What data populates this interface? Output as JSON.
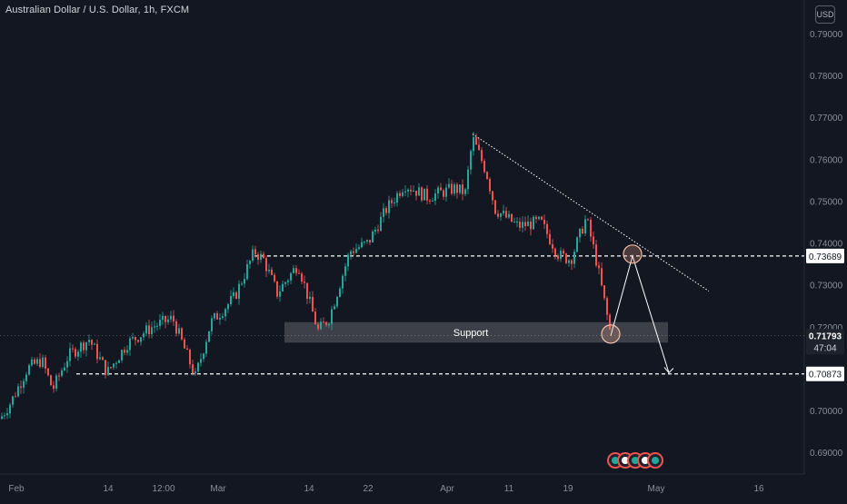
{
  "header": {
    "symbol": "Australian Dollar / U.S. Dollar, 1h, FXCM",
    "currency": "USD"
  },
  "colors": {
    "background": "#131722",
    "up": "#26a69a",
    "down": "#ef5350",
    "grid_text": "#b2b5be",
    "annotation": "#ffffff"
  },
  "chart_data": {
    "type": "candlestick",
    "symbol": "AUDUSD",
    "timeframe": "1h",
    "ylim": [
      0.685,
      0.795
    ],
    "y_ticks": [
      {
        "value": 0.79,
        "label": "0.79000"
      },
      {
        "value": 0.78,
        "label": "0.78000"
      },
      {
        "value": 0.77,
        "label": "0.77000"
      },
      {
        "value": 0.76,
        "label": "0.76000"
      },
      {
        "value": 0.75,
        "label": "0.75000"
      },
      {
        "value": 0.74,
        "label": "0.74000"
      },
      {
        "value": 0.73,
        "label": "0.73000"
      },
      {
        "value": 0.72,
        "label": "0.72000"
      },
      {
        "value": 0.7,
        "label": "0.70000"
      },
      {
        "value": 0.69,
        "label": "0.69000"
      }
    ],
    "x_ticks": [
      "Feb",
      "14",
      "12:00",
      "Mar",
      "14",
      "22",
      "Apr",
      "11",
      "19",
      "May",
      "16"
    ],
    "price_path": [
      [
        0,
        0.698
      ],
      [
        12,
        0.702
      ],
      [
        30,
        0.71
      ],
      [
        46,
        0.712
      ],
      [
        58,
        0.705
      ],
      [
        75,
        0.713
      ],
      [
        98,
        0.717
      ],
      [
        118,
        0.709
      ],
      [
        140,
        0.716
      ],
      [
        168,
        0.72
      ],
      [
        190,
        0.722
      ],
      [
        215,
        0.708
      ],
      [
        232,
        0.721
      ],
      [
        258,
        0.727
      ],
      [
        280,
        0.738
      ],
      [
        290,
        0.736
      ],
      [
        305,
        0.728
      ],
      [
        328,
        0.735
      ],
      [
        350,
        0.719
      ],
      [
        362,
        0.722
      ],
      [
        385,
        0.738
      ],
      [
        405,
        0.74
      ],
      [
        425,
        0.748
      ],
      [
        445,
        0.754
      ],
      [
        470,
        0.751
      ],
      [
        500,
        0.753
      ],
      [
        512,
        0.752
      ],
      [
        520,
        0.765
      ],
      [
        535,
        0.757
      ],
      [
        545,
        0.748
      ],
      [
        570,
        0.744
      ],
      [
        595,
        0.745
      ],
      [
        615,
        0.737
      ],
      [
        628,
        0.736
      ],
      [
        645,
        0.746
      ],
      [
        655,
        0.737
      ],
      [
        665,
        0.726
      ],
      [
        672,
        0.718
      ]
    ],
    "horizontal_levels": [
      {
        "value": 0.73689,
        "label": "0.73689",
        "style": "dashed"
      },
      {
        "value": 0.70873,
        "label": "0.70873",
        "style": "dashed"
      }
    ],
    "current_price": {
      "value": 0.71793,
      "label": "0.71793",
      "countdown": "47:04"
    },
    "support_zone": {
      "label": "Support",
      "low": 0.7175,
      "high": 0.72
    },
    "trendline": {
      "from": [
        520,
        0.766
      ],
      "to": [
        780,
        0.7285
      ]
    },
    "projection": {
      "start": [
        672,
        0.7178
      ],
      "peak": [
        696,
        0.7369
      ],
      "target": [
        736,
        0.709
      ]
    }
  }
}
